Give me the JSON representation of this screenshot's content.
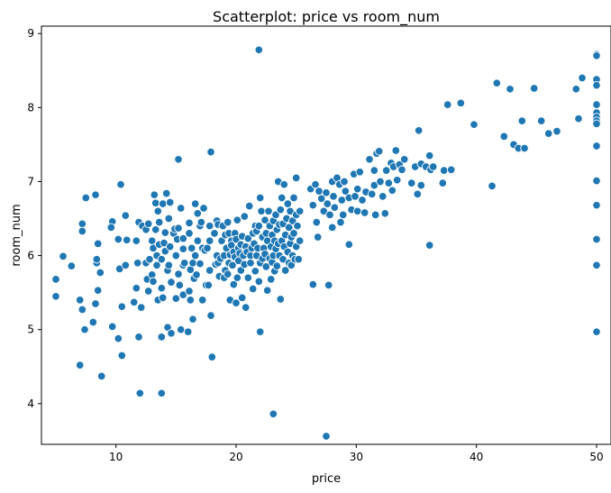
{
  "chart_data": {
    "type": "scatter",
    "title": "Scatterplot: price vs room_num",
    "xlabel": "price",
    "ylabel": "room_num",
    "xlim": [
      3.8,
      51.2
    ],
    "ylim": [
      3.45,
      9.1
    ],
    "xticks": [
      10,
      20,
      30,
      40,
      50
    ],
    "yticks": [
      4,
      5,
      6,
      7,
      8,
      9
    ],
    "grid": false,
    "color": "#1f77b4",
    "points": [
      [
        5.0,
        5.68
      ],
      [
        5.0,
        5.45
      ],
      [
        5.6,
        5.99
      ],
      [
        6.3,
        5.86
      ],
      [
        7.0,
        4.52
      ],
      [
        7.0,
        5.4
      ],
      [
        7.2,
        6.43
      ],
      [
        7.2,
        6.33
      ],
      [
        7.2,
        5.27
      ],
      [
        7.4,
        5.0
      ],
      [
        7.5,
        6.78
      ],
      [
        8.1,
        5.1
      ],
      [
        8.3,
        6.82
      ],
      [
        8.3,
        5.35
      ],
      [
        8.4,
        5.9
      ],
      [
        8.4,
        5.95
      ],
      [
        8.5,
        5.53
      ],
      [
        8.8,
        4.37
      ],
      [
        8.5,
        6.16
      ],
      [
        8.7,
        5.77
      ],
      [
        9.7,
        6.46
      ],
      [
        9.6,
        6.38
      ],
      [
        9.7,
        5.04
      ],
      [
        10.2,
        4.88
      ],
      [
        10.3,
        5.82
      ],
      [
        10.4,
        6.96
      ],
      [
        10.2,
        6.22
      ],
      [
        10.5,
        4.65
      ],
      [
        10.5,
        5.31
      ],
      [
        10.8,
        5.87
      ],
      [
        10.9,
        6.21
      ],
      [
        10.8,
        6.54
      ],
      [
        11.5,
        5.37
      ],
      [
        11.7,
        5.56
      ],
      [
        11.7,
        6.2
      ],
      [
        11.8,
        5.9
      ],
      [
        11.9,
        4.9
      ],
      [
        11.9,
        6.45
      ],
      [
        12.0,
        4.14
      ],
      [
        12.1,
        5.3
      ],
      [
        12.2,
        6.4
      ],
      [
        12.5,
        5.9
      ],
      [
        12.5,
        6.35
      ],
      [
        12.6,
        5.68
      ],
      [
        12.7,
        5.52
      ],
      [
        12.7,
        6.43
      ],
      [
        12.8,
        5.95
      ],
      [
        13.0,
        6.2
      ],
      [
        13.0,
        5.74
      ],
      [
        13.1,
        6.1
      ],
      [
        13.1,
        5.65
      ],
      [
        13.2,
        6.82
      ],
      [
        13.3,
        6.71
      ],
      [
        13.3,
        6.35
      ],
      [
        13.4,
        6.0
      ],
      [
        13.5,
        5.4
      ],
      [
        13.4,
        5.87
      ],
      [
        13.5,
        6.6
      ],
      [
        13.6,
        6.15
      ],
      [
        13.6,
        6.45
      ],
      [
        13.8,
        4.14
      ],
      [
        13.8,
        4.9
      ],
      [
        13.8,
        5.56
      ],
      [
        13.8,
        5.95
      ],
      [
        13.9,
        6.7
      ],
      [
        13.9,
        5.43
      ],
      [
        14.0,
        6.17
      ],
      [
        14.1,
        6.06
      ],
      [
        14.1,
        6.31
      ],
      [
        14.2,
        6.84
      ],
      [
        14.3,
        5.8
      ],
      [
        14.3,
        5.03
      ],
      [
        14.4,
        6.5
      ],
      [
        14.4,
        5.87
      ],
      [
        14.5,
        6.72
      ],
      [
        14.5,
        6.12
      ],
      [
        14.6,
        4.95
      ],
      [
        14.6,
        5.64
      ],
      [
        14.8,
        6.3
      ],
      [
        14.9,
        6.36
      ],
      [
        15.0,
        5.42
      ],
      [
        15.0,
        6.0
      ],
      [
        15.1,
        6.22
      ],
      [
        15.2,
        7.3
      ],
      [
        15.2,
        5.75
      ],
      [
        15.2,
        6.37
      ],
      [
        15.3,
        5.6
      ],
      [
        15.4,
        5.0
      ],
      [
        15.4,
        6.64
      ],
      [
        15.6,
        6.1
      ],
      [
        15.6,
        5.47
      ],
      [
        15.6,
        5.87
      ],
      [
        15.6,
        6.09
      ],
      [
        15.6,
        6.23
      ],
      [
        15.7,
        5.9
      ],
      [
        16.0,
        4.97
      ],
      [
        16.1,
        6.3
      ],
      [
        16.1,
        5.52
      ],
      [
        16.1,
        6.44
      ],
      [
        16.2,
        5.4
      ],
      [
        16.2,
        5.81
      ],
      [
        16.3,
        6.1
      ],
      [
        16.4,
        5.14
      ],
      [
        16.4,
        5.9
      ],
      [
        16.5,
        5.69
      ],
      [
        16.6,
        6.7
      ],
      [
        16.6,
        6.0
      ],
      [
        16.7,
        5.74
      ],
      [
        16.8,
        6.2
      ],
      [
        16.8,
        6.57
      ],
      [
        17.0,
        6.4
      ],
      [
        17.0,
        5.89
      ],
      [
        17.1,
        6.45
      ],
      [
        17.2,
        6.1
      ],
      [
        17.2,
        5.4
      ],
      [
        17.3,
        6.64
      ],
      [
        17.4,
        6.07
      ],
      [
        17.5,
        5.6
      ],
      [
        17.6,
        6.1
      ],
      [
        17.7,
        5.6
      ],
      [
        17.8,
        6.4
      ],
      [
        17.8,
        5.8
      ],
      [
        17.8,
        6.2
      ],
      [
        17.9,
        5.19
      ],
      [
        18.0,
        4.63
      ],
      [
        17.9,
        7.4
      ],
      [
        18.2,
        6.3
      ],
      [
        18.3,
        5.88
      ],
      [
        18.4,
        6.0
      ],
      [
        18.4,
        6.47
      ],
      [
        18.5,
        5.9
      ],
      [
        18.5,
        6.42
      ],
      [
        18.6,
        5.72
      ],
      [
        18.7,
        5.96
      ],
      [
        18.8,
        6.2
      ],
      [
        18.9,
        6.4
      ],
      [
        19.0,
        6.0
      ],
      [
        19.0,
        5.7
      ],
      [
        19.1,
        6.28
      ],
      [
        19.1,
        5.8
      ],
      [
        19.2,
        6.1
      ],
      [
        19.3,
        6.45
      ],
      [
        19.3,
        5.75
      ],
      [
        19.4,
        6.3
      ],
      [
        19.4,
        5.9
      ],
      [
        19.5,
        6.01
      ],
      [
        19.5,
        5.4
      ],
      [
        19.6,
        6.2
      ],
      [
        19.6,
        6.14
      ],
      [
        19.7,
        5.87
      ],
      [
        19.8,
        6.05
      ],
      [
        19.8,
        5.61
      ],
      [
        19.9,
        6.3
      ],
      [
        19.9,
        5.98
      ],
      [
        20.0,
        5.36
      ],
      [
        20.0,
        6.22
      ],
      [
        20.1,
        5.7
      ],
      [
        20.1,
        6.48
      ],
      [
        20.2,
        6.1
      ],
      [
        20.2,
        5.93
      ],
      [
        20.3,
        6.03
      ],
      [
        20.4,
        5.8
      ],
      [
        20.4,
        6.15
      ],
      [
        20.5,
        5.43
      ],
      [
        20.5,
        6.26
      ],
      [
        20.6,
        6.0
      ],
      [
        20.7,
        5.88
      ],
      [
        20.7,
        6.53
      ],
      [
        20.8,
        5.3
      ],
      [
        20.8,
        6.12
      ],
      [
        20.9,
        6.05
      ],
      [
        21.0,
        5.7
      ],
      [
        21.0,
        6.23
      ],
      [
        21.1,
        6.67
      ],
      [
        21.2,
        6.0
      ],
      [
        21.2,
        5.9
      ],
      [
        21.3,
        6.1
      ],
      [
        21.4,
        6.3
      ],
      [
        21.4,
        5.55
      ],
      [
        21.5,
        6.16
      ],
      [
        21.6,
        6.4
      ],
      [
        21.6,
        5.79
      ],
      [
        21.7,
        6.0
      ],
      [
        21.7,
        6.33
      ],
      [
        21.8,
        6.1
      ],
      [
        21.9,
        5.65
      ],
      [
        21.9,
        6.4
      ],
      [
        22.0,
        4.97
      ],
      [
        22.0,
        5.9
      ],
      [
        21.9,
        8.78
      ],
      [
        22.0,
        6.78
      ],
      [
        22.1,
        6.6
      ],
      [
        22.2,
        6.25
      ],
      [
        22.2,
        5.96
      ],
      [
        22.3,
        6.1
      ],
      [
        22.4,
        6.48
      ],
      [
        22.4,
        6.02
      ],
      [
        22.5,
        5.85
      ],
      [
        22.5,
        6.3
      ],
      [
        22.6,
        6.2
      ],
      [
        22.6,
        5.53
      ],
      [
        22.7,
        6.6
      ],
      [
        22.8,
        6.4
      ],
      [
        22.8,
        5.96
      ],
      [
        22.9,
        6.12
      ],
      [
        22.9,
        5.68
      ],
      [
        23.0,
        6.28
      ],
      [
        23.0,
        5.91
      ],
      [
        23.1,
        3.86
      ],
      [
        23.1,
        6.0
      ],
      [
        23.1,
        6.47
      ],
      [
        23.2,
        6.2
      ],
      [
        23.2,
        5.79
      ],
      [
        23.3,
        6.55
      ],
      [
        23.3,
        6.09
      ],
      [
        23.4,
        6.35
      ],
      [
        23.4,
        5.86
      ],
      [
        23.5,
        7.0
      ],
      [
        23.5,
        6.16
      ],
      [
        23.6,
        6.42
      ],
      [
        23.6,
        6.0
      ],
      [
        23.7,
        5.41
      ],
      [
        23.7,
        6.62
      ],
      [
        23.8,
        6.2
      ],
      [
        23.8,
        6.78
      ],
      [
        23.9,
        5.95
      ],
      [
        23.9,
        6.43
      ],
      [
        24.0,
        6.12
      ],
      [
        24.0,
        6.96
      ],
      [
        24.1,
        6.28
      ],
      [
        24.1,
        5.8
      ],
      [
        24.2,
        6.5
      ],
      [
        24.3,
        6.05
      ],
      [
        24.3,
        6.7
      ],
      [
        24.4,
        6.38
      ],
      [
        24.4,
        5.9
      ],
      [
        24.5,
        6.6
      ],
      [
        24.5,
        6.16
      ],
      [
        24.6,
        6.25
      ],
      [
        24.6,
        5.87
      ],
      [
        24.7,
        6.47
      ],
      [
        24.7,
        6.0
      ],
      [
        24.8,
        6.78
      ],
      [
        24.8,
        6.3
      ],
      [
        24.9,
        5.95
      ],
      [
        25.0,
        7.05
      ],
      [
        25.0,
        6.55
      ],
      [
        25.0,
        6.12
      ],
      [
        25.1,
        6.4
      ],
      [
        25.2,
        5.95
      ],
      [
        25.3,
        6.6
      ],
      [
        25.3,
        6.2
      ],
      [
        26.2,
        6.9
      ],
      [
        26.4,
        6.68
      ],
      [
        26.4,
        5.61
      ],
      [
        26.6,
        6.96
      ],
      [
        26.7,
        6.45
      ],
      [
        26.8,
        6.25
      ],
      [
        26.9,
        6.87
      ],
      [
        27.1,
        6.77
      ],
      [
        27.3,
        6.6
      ],
      [
        27.5,
        3.56
      ],
      [
        27.5,
        6.85
      ],
      [
        27.6,
        6.7
      ],
      [
        27.7,
        5.6
      ],
      [
        27.8,
        6.55
      ],
      [
        28.0,
        7.0
      ],
      [
        28.0,
        6.38
      ],
      [
        28.1,
        6.8
      ],
      [
        28.2,
        6.65
      ],
      [
        28.4,
        7.05
      ],
      [
        28.6,
        6.96
      ],
      [
        28.7,
        6.45
      ],
      [
        28.8,
        6.75
      ],
      [
        28.9,
        6.55
      ],
      [
        29.0,
        7.0
      ],
      [
        29.1,
        6.87
      ],
      [
        29.4,
        6.78
      ],
      [
        29.4,
        6.15
      ],
      [
        29.6,
        6.62
      ],
      [
        29.8,
        7.1
      ],
      [
        29.9,
        6.8
      ],
      [
        30.1,
        6.6
      ],
      [
        30.1,
        6.9
      ],
      [
        30.3,
        7.13
      ],
      [
        30.5,
        6.75
      ],
      [
        30.7,
        6.58
      ],
      [
        30.8,
        6.86
      ],
      [
        31.1,
        7.3
      ],
      [
        31.3,
        6.83
      ],
      [
        31.5,
        6.95
      ],
      [
        31.5,
        7.15
      ],
      [
        31.6,
        6.55
      ],
      [
        31.7,
        7.38
      ],
      [
        31.9,
        7.41
      ],
      [
        32.0,
        7.0
      ],
      [
        32.2,
        6.8
      ],
      [
        32.4,
        6.57
      ],
      [
        32.5,
        7.15
      ],
      [
        32.7,
        6.98
      ],
      [
        32.9,
        7.25
      ],
      [
        33.0,
        6.88
      ],
      [
        33.1,
        7.2
      ],
      [
        33.3,
        7.42
      ],
      [
        33.4,
        7.02
      ],
      [
        33.6,
        7.23
      ],
      [
        33.8,
        7.16
      ],
      [
        34.0,
        7.3
      ],
      [
        34.6,
        6.98
      ],
      [
        34.9,
        7.2
      ],
      [
        35.1,
        6.83
      ],
      [
        35.2,
        7.69
      ],
      [
        35.4,
        7.24
      ],
      [
        35.4,
        6.95
      ],
      [
        35.8,
        7.2
      ],
      [
        36.1,
        7.35
      ],
      [
        36.1,
        6.14
      ],
      [
        36.2,
        7.16
      ],
      [
        36.4,
        7.2
      ],
      [
        37.2,
        6.98
      ],
      [
        37.3,
        7.15
      ],
      [
        37.6,
        8.04
      ],
      [
        37.9,
        7.16
      ],
      [
        38.7,
        8.06
      ],
      [
        39.8,
        7.77
      ],
      [
        41.3,
        6.94
      ],
      [
        41.7,
        8.33
      ],
      [
        42.3,
        7.61
      ],
      [
        42.8,
        8.25
      ],
      [
        43.1,
        7.5
      ],
      [
        43.5,
        7.45
      ],
      [
        43.8,
        7.82
      ],
      [
        44.0,
        7.45
      ],
      [
        44.8,
        8.26
      ],
      [
        45.4,
        7.82
      ],
      [
        46.0,
        7.65
      ],
      [
        46.7,
        7.68
      ],
      [
        48.3,
        8.25
      ],
      [
        48.5,
        7.85
      ],
      [
        48.8,
        8.4
      ],
      [
        50.0,
        8.72
      ],
      [
        50.0,
        8.7
      ],
      [
        50.0,
        8.38
      ],
      [
        50.0,
        8.3
      ],
      [
        50.0,
        8.04
      ],
      [
        50.0,
        7.93
      ],
      [
        50.0,
        7.87
      ],
      [
        50.0,
        7.82
      ],
      [
        50.0,
        7.78
      ],
      [
        50.0,
        7.48
      ],
      [
        50.0,
        7.01
      ],
      [
        50.0,
        6.68
      ],
      [
        50.0,
        6.22
      ],
      [
        50.0,
        5.87
      ],
      [
        50.0,
        4.97
      ]
    ]
  }
}
